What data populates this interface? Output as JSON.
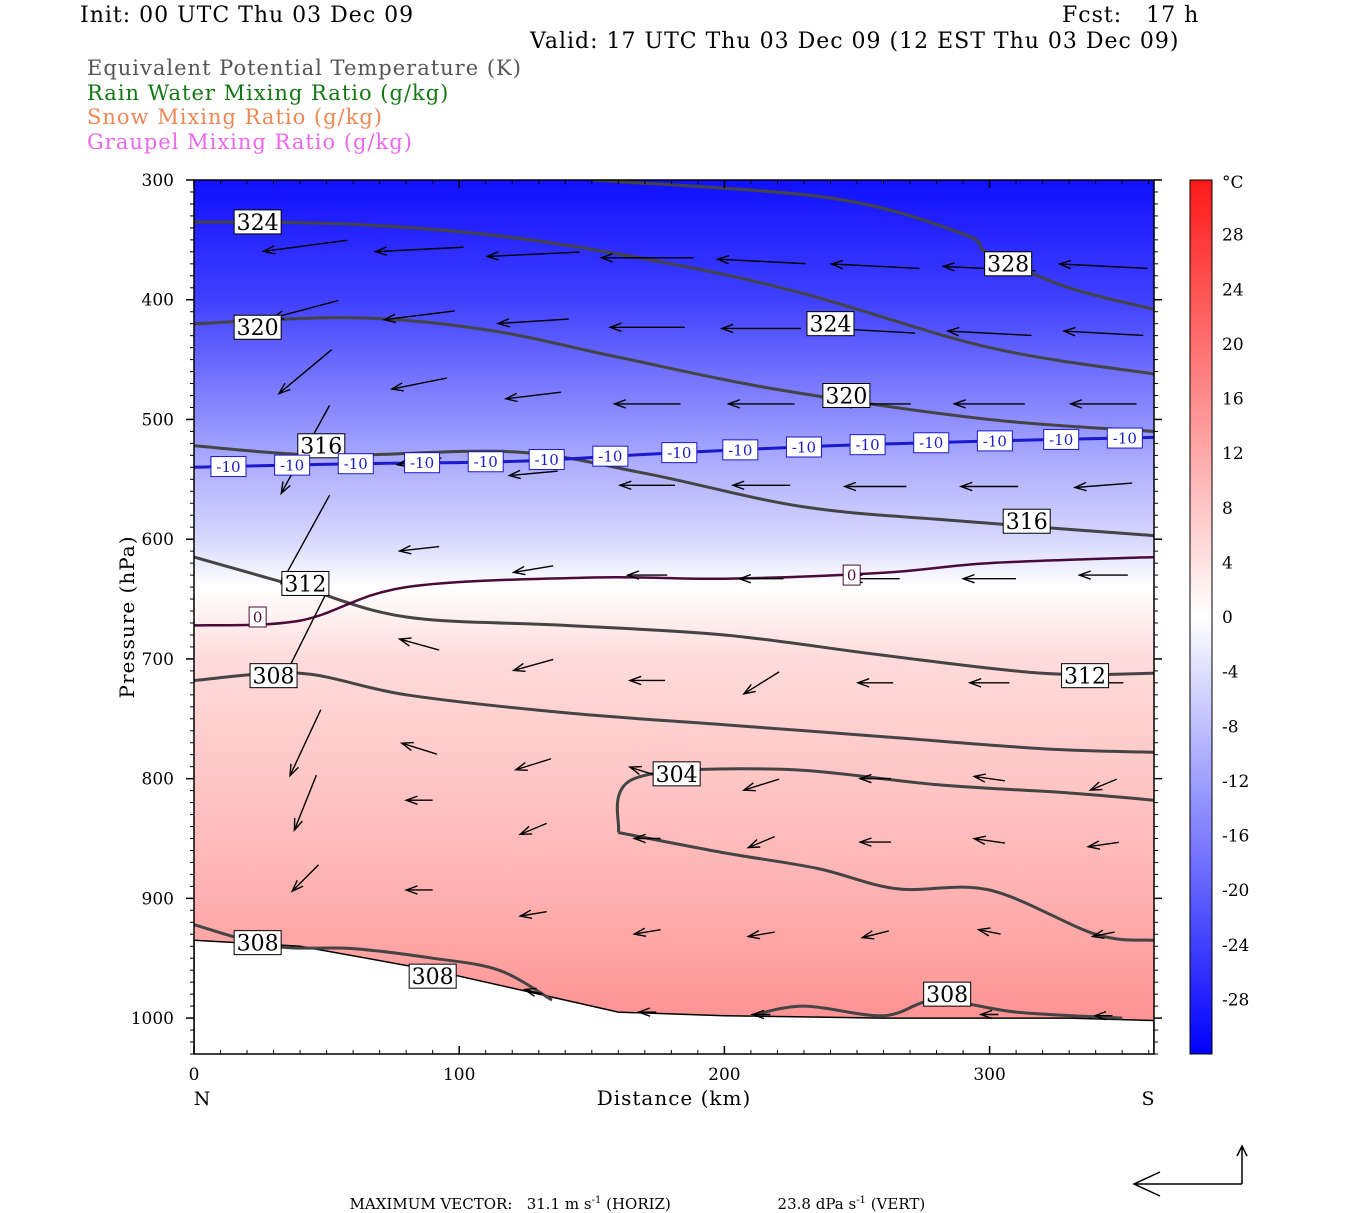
{
  "header": {
    "init": "Init: 00 UTC Thu 03 Dec 09",
    "fcst": "Fcst:   17 h",
    "valid": "Valid: 17 UTC Thu 03 Dec 09 (12 EST Thu 03 Dec 09)"
  },
  "legend": [
    {
      "label": "Equivalent Potential Temperature (K)",
      "color": "#555555"
    },
    {
      "label": "Rain Water Mixing Ratio (g/kg)",
      "color": "#117711"
    },
    {
      "label": "Snow Mixing Ratio (g/kg)",
      "color": "#ee8855"
    },
    {
      "label": "Graupel Mixing Ratio (g/kg)",
      "color": "#ee66ee"
    }
  ],
  "footer": {
    "max_vector_label": "MAXIMUM VECTOR:",
    "horiz_value": "31.1 m s",
    "horiz_unit": "(HORIZ)",
    "vert_value": "23.8 dPa s",
    "vert_unit": "(VERT)",
    "exponent": "-1"
  },
  "chart_data": {
    "type": "cross-section",
    "xlabel": "Distance (km)",
    "ylabel": "Pressure (hPa)",
    "xlim": [
      0,
      362
    ],
    "ylim": [
      1030,
      300
    ],
    "x_ticks": [
      0,
      100,
      200,
      300
    ],
    "y_ticks": [
      300,
      400,
      500,
      600,
      700,
      800,
      900,
      1000
    ],
    "x_end_labels": {
      "left": "N",
      "right": "S"
    },
    "colorbar": {
      "unit": "°C",
      "labels": [
        28,
        24,
        20,
        16,
        12,
        8,
        4,
        0,
        -4,
        -8,
        -12,
        -16,
        -20,
        -24,
        -28
      ],
      "range": [
        -32,
        32
      ]
    },
    "temperature_field": {
      "description_levels_hPa": [
        300,
        400,
        500,
        540,
        600,
        640,
        700,
        800,
        900,
        1000
      ],
      "values_C": [
        -30,
        -24,
        -14,
        -10,
        -5,
        0,
        5,
        8,
        11,
        15
      ]
    },
    "theta_e_contours": [
      {
        "value": 328,
        "points": [
          [
            150,
            300
          ],
          [
            240,
            315
          ],
          [
            290,
            345
          ],
          [
            300,
            362
          ],
          [
            330,
            390
          ],
          [
            362,
            408
          ]
        ]
      },
      {
        "value": 324,
        "points": [
          [
            0,
            335
          ],
          [
            60,
            337
          ],
          [
            120,
            348
          ],
          [
            180,
            370
          ],
          [
            230,
            395
          ],
          [
            300,
            440
          ],
          [
            362,
            462
          ]
        ]
      },
      {
        "value": 320,
        "points": [
          [
            0,
            420
          ],
          [
            60,
            415
          ],
          [
            110,
            425
          ],
          [
            160,
            448
          ],
          [
            220,
            475
          ],
          [
            300,
            500
          ],
          [
            362,
            510
          ]
        ]
      },
      {
        "value": 316,
        "points": [
          [
            0,
            522
          ],
          [
            50,
            530
          ],
          [
            120,
            527
          ],
          [
            170,
            545
          ],
          [
            230,
            573
          ],
          [
            290,
            585
          ],
          [
            362,
            597
          ]
        ]
      },
      {
        "value": 312,
        "points": [
          [
            0,
            615
          ],
          [
            40,
            640
          ],
          [
            80,
            665
          ],
          [
            140,
            672
          ],
          [
            200,
            680
          ],
          [
            260,
            697
          ],
          [
            320,
            712
          ],
          [
            362,
            712
          ]
        ]
      },
      {
        "value": 308,
        "points": [
          [
            0,
            718
          ],
          [
            40,
            712
          ],
          [
            80,
            730
          ],
          [
            140,
            745
          ],
          [
            200,
            755
          ],
          [
            260,
            765
          ],
          [
            320,
            775
          ],
          [
            362,
            778
          ]
        ]
      },
      {
        "value": 304,
        "points": [
          [
            160,
            845
          ],
          [
            166,
            800
          ],
          [
            220,
            792
          ],
          [
            280,
            805
          ],
          [
            330,
            812
          ],
          [
            362,
            818
          ]
        ]
      },
      {
        "value": 304,
        "points": [
          [
            160,
            845
          ],
          [
            200,
            862
          ],
          [
            235,
            875
          ],
          [
            265,
            892
          ],
          [
            300,
            893
          ],
          [
            340,
            930
          ],
          [
            362,
            935
          ]
        ]
      },
      {
        "value": 308,
        "points": [
          [
            0,
            922
          ],
          [
            30,
            940
          ],
          [
            60,
            942
          ],
          [
            90,
            950
          ],
          [
            115,
            960
          ],
          [
            135,
            985
          ]
        ]
      },
      {
        "value": 308,
        "points": [
          [
            210,
            998
          ],
          [
            230,
            990
          ],
          [
            260,
            998
          ],
          [
            280,
            985
          ],
          [
            310,
            995
          ],
          [
            350,
            1000
          ]
        ]
      }
    ],
    "theta_e_labels": [
      {
        "text": "328",
        "x": 307,
        "p": 370
      },
      {
        "text": "324",
        "x": 24,
        "p": 335
      },
      {
        "text": "324",
        "x": 240,
        "p": 420
      },
      {
        "text": "320",
        "x": 24,
        "p": 423
      },
      {
        "text": "320",
        "x": 246,
        "p": 480
      },
      {
        "text": "316",
        "x": 48,
        "p": 522
      },
      {
        "text": "316",
        "x": 314,
        "p": 585
      },
      {
        "text": "312",
        "x": 42,
        "p": 637
      },
      {
        "text": "312",
        "x": 336,
        "p": 714
      },
      {
        "text": "308",
        "x": 30,
        "p": 714
      },
      {
        "text": "304",
        "x": 182,
        "p": 796
      },
      {
        "text": "308",
        "x": 24,
        "p": 937
      },
      {
        "text": "308",
        "x": 90,
        "p": 965
      },
      {
        "text": "308",
        "x": 284,
        "p": 980
      }
    ],
    "isotherm_minus10": {
      "value": -10,
      "points": [
        [
          0,
          540
        ],
        [
          60,
          537
        ],
        [
          120,
          535
        ],
        [
          180,
          528
        ],
        [
          240,
          522
        ],
        [
          300,
          518
        ],
        [
          362,
          515
        ]
      ],
      "label_x": [
        13,
        37,
        61,
        86,
        110,
        133,
        157,
        183,
        206,
        230,
        254,
        278,
        302,
        327,
        351
      ]
    },
    "isotherm_zero": {
      "value": 0,
      "points": [
        [
          0,
          672
        ],
        [
          40,
          668
        ],
        [
          80,
          640
        ],
        [
          150,
          632
        ],
        [
          200,
          633
        ],
        [
          260,
          628
        ],
        [
          300,
          620
        ],
        [
          362,
          615
        ]
      ],
      "labels": [
        {
          "x": 24,
          "p": 665
        },
        {
          "x": 248,
          "p": 630
        }
      ]
    },
    "terrain": [
      [
        0,
        935
      ],
      [
        40,
        940
      ],
      [
        90,
        960
      ],
      [
        130,
        980
      ],
      [
        160,
        995
      ],
      [
        200,
        998
      ],
      [
        260,
        1000
      ],
      [
        330,
        1000
      ],
      [
        362,
        1002
      ]
    ],
    "wind_vectors": [
      {
        "x": 42,
        "p": 355,
        "u": -38,
        "v": 5
      },
      {
        "x": 85,
        "p": 358,
        "u": -40,
        "v": 2
      },
      {
        "x": 128,
        "p": 362,
        "u": -42,
        "v": 2
      },
      {
        "x": 171,
        "p": 365,
        "u": -42,
        "v": 0
      },
      {
        "x": 214,
        "p": 368,
        "u": -40,
        "v": -2
      },
      {
        "x": 257,
        "p": 372,
        "u": -40,
        "v": -2
      },
      {
        "x": 300,
        "p": 374,
        "u": -42,
        "v": -2
      },
      {
        "x": 343,
        "p": 372,
        "u": -40,
        "v": -2
      },
      {
        "x": 42,
        "p": 408,
        "u": -30,
        "v": 8
      },
      {
        "x": 85,
        "p": 413,
        "u": -32,
        "v": 4
      },
      {
        "x": 128,
        "p": 418,
        "u": -32,
        "v": 2
      },
      {
        "x": 171,
        "p": 423,
        "u": -34,
        "v": 0
      },
      {
        "x": 214,
        "p": 424,
        "u": -36,
        "v": 0
      },
      {
        "x": 257,
        "p": 426,
        "u": -36,
        "v": -2
      },
      {
        "x": 300,
        "p": 428,
        "u": -38,
        "v": -2
      },
      {
        "x": 343,
        "p": 428,
        "u": -36,
        "v": -2
      },
      {
        "x": 42,
        "p": 460,
        "u": -24,
        "v": 20
      },
      {
        "x": 85,
        "p": 470,
        "u": -25,
        "v": 5
      },
      {
        "x": 128,
        "p": 480,
        "u": -25,
        "v": 3
      },
      {
        "x": 171,
        "p": 487,
        "u": -30,
        "v": 0
      },
      {
        "x": 214,
        "p": 487,
        "u": -30,
        "v": 0
      },
      {
        "x": 257,
        "p": 487,
        "u": -32,
        "v": 0
      },
      {
        "x": 300,
        "p": 487,
        "u": -32,
        "v": 0
      },
      {
        "x": 343,
        "p": 487,
        "u": -30,
        "v": 0
      },
      {
        "x": 42,
        "p": 525,
        "u": -22,
        "v": 40
      },
      {
        "x": 85,
        "p": 535,
        "u": -20,
        "v": 3
      },
      {
        "x": 128,
        "p": 545,
        "u": -22,
        "v": 2
      },
      {
        "x": 171,
        "p": 555,
        "u": -25,
        "v": 0
      },
      {
        "x": 214,
        "p": 555,
        "u": -26,
        "v": 0
      },
      {
        "x": 257,
        "p": 556,
        "u": -28,
        "v": 0
      },
      {
        "x": 300,
        "p": 556,
        "u": -26,
        "v": 0
      },
      {
        "x": 343,
        "p": 555,
        "u": -26,
        "v": 2
      },
      {
        "x": 42,
        "p": 600,
        "u": -22,
        "v": 40
      },
      {
        "x": 85,
        "p": 608,
        "u": -18,
        "v": 2
      },
      {
        "x": 128,
        "p": 625,
        "u": -18,
        "v": 3
      },
      {
        "x": 171,
        "p": 630,
        "u": -18,
        "v": 0
      },
      {
        "x": 214,
        "p": 633,
        "u": -20,
        "v": 0
      },
      {
        "x": 257,
        "p": 633,
        "u": -22,
        "v": 0
      },
      {
        "x": 300,
        "p": 633,
        "u": -24,
        "v": 0
      },
      {
        "x": 343,
        "p": 630,
        "u": -22,
        "v": 0
      },
      {
        "x": 42,
        "p": 680,
        "u": -20,
        "v": 40
      },
      {
        "x": 85,
        "p": 688,
        "u": -18,
        "v": -5
      },
      {
        "x": 128,
        "p": 705,
        "u": -18,
        "v": 5
      },
      {
        "x": 171,
        "p": 718,
        "u": -16,
        "v": 0
      },
      {
        "x": 214,
        "p": 720,
        "u": -16,
        "v": 10
      },
      {
        "x": 257,
        "p": 720,
        "u": -16,
        "v": 0
      },
      {
        "x": 300,
        "p": 720,
        "u": -18,
        "v": 0
      },
      {
        "x": 343,
        "p": 720,
        "u": -18,
        "v": 0
      },
      {
        "x": 42,
        "p": 770,
        "u": -14,
        "v": 30
      },
      {
        "x": 85,
        "p": 775,
        "u": -16,
        "v": -5
      },
      {
        "x": 128,
        "p": 788,
        "u": -16,
        "v": 5
      },
      {
        "x": 171,
        "p": 795,
        "u": -16,
        "v": -5
      },
      {
        "x": 214,
        "p": 805,
        "u": -16,
        "v": 5
      },
      {
        "x": 257,
        "p": 800,
        "u": -14,
        "v": 0
      },
      {
        "x": 300,
        "p": 800,
        "u": -14,
        "v": -2
      },
      {
        "x": 343,
        "p": 805,
        "u": -12,
        "v": 5
      },
      {
        "x": 42,
        "p": 820,
        "u": -10,
        "v": 25
      },
      {
        "x": 85,
        "p": 818,
        "u": -12,
        "v": 0
      },
      {
        "x": 128,
        "p": 842,
        "u": -12,
        "v": 5
      },
      {
        "x": 171,
        "p": 850,
        "u": -12,
        "v": 0
      },
      {
        "x": 214,
        "p": 853,
        "u": -12,
        "v": 5
      },
      {
        "x": 257,
        "p": 853,
        "u": -14,
        "v": 0
      },
      {
        "x": 300,
        "p": 852,
        "u": -14,
        "v": -2
      },
      {
        "x": 343,
        "p": 855,
        "u": -14,
        "v": 2
      },
      {
        "x": 42,
        "p": 883,
        "u": -12,
        "v": 12
      },
      {
        "x": 85,
        "p": 893,
        "u": -12,
        "v": 0
      },
      {
        "x": 128,
        "p": 913,
        "u": -12,
        "v": 2
      },
      {
        "x": 171,
        "p": 928,
        "u": -12,
        "v": 2
      },
      {
        "x": 214,
        "p": 930,
        "u": -12,
        "v": 2
      },
      {
        "x": 257,
        "p": 930,
        "u": -12,
        "v": 3
      },
      {
        "x": 300,
        "p": 928,
        "u": -10,
        "v": -2
      },
      {
        "x": 343,
        "p": 930,
        "u": -10,
        "v": 2
      },
      {
        "x": 128,
        "p": 978,
        "u": -8,
        "v": -2
      },
      {
        "x": 171,
        "p": 995,
        "u": -8,
        "v": 0
      },
      {
        "x": 214,
        "p": 997,
        "u": -8,
        "v": 0
      },
      {
        "x": 300,
        "p": 997,
        "u": -8,
        "v": 0
      },
      {
        "x": 343,
        "p": 998,
        "u": -8,
        "v": 0
      }
    ]
  }
}
